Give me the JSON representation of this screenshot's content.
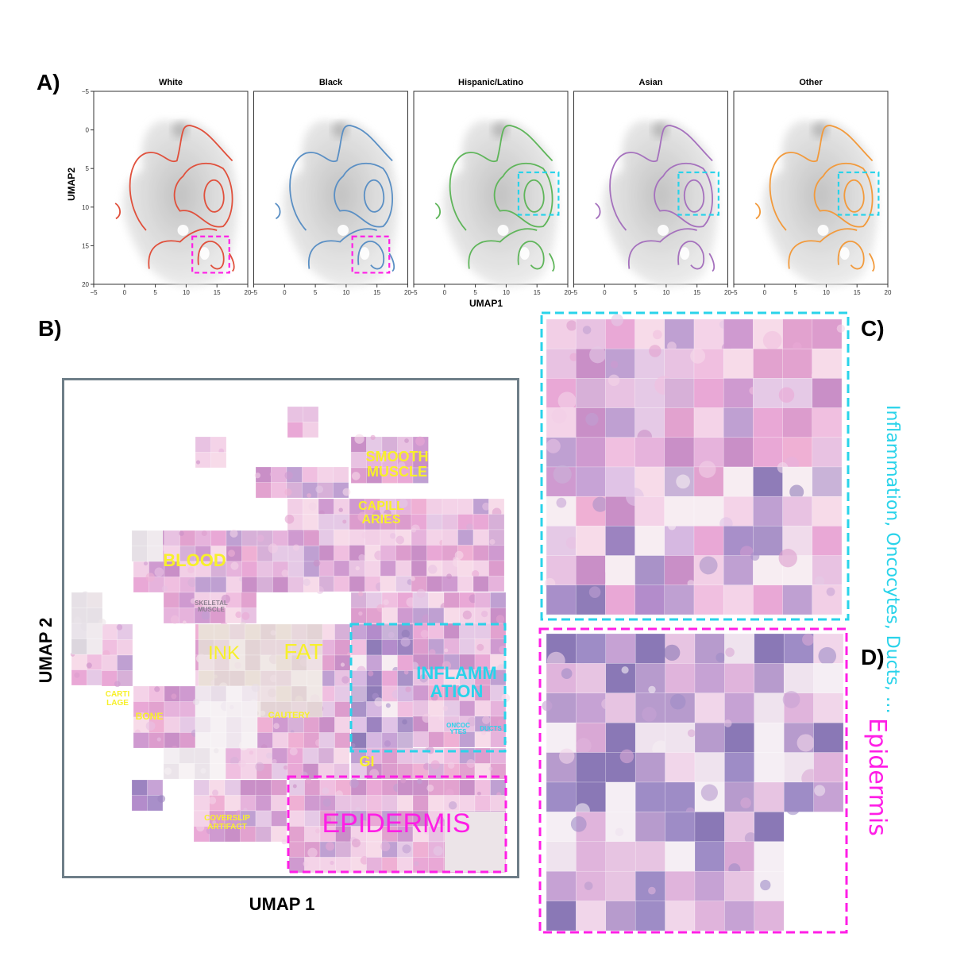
{
  "panels": {
    "a": "A)",
    "b": "B)",
    "c": "C)",
    "d": "D)"
  },
  "panel_a": {
    "ylabel": "UMAP2",
    "xlabel": "UMAP1",
    "chart_data": {
      "type": "contour",
      "xlim": [
        -5,
        20
      ],
      "ylim": [
        -5,
        20
      ],
      "y_inverted": true,
      "x_ticks": [
        -5,
        0,
        5,
        10,
        15,
        20
      ],
      "y_ticks": [
        -5,
        0,
        5,
        10,
        15,
        20
      ],
      "subplots": [
        {
          "title": "White",
          "color": "#e0503c",
          "highlight": "magenta"
        },
        {
          "title": "Black",
          "color": "#5a8fc4",
          "highlight": "magenta"
        },
        {
          "title": "Hispanic/Latino",
          "color": "#5fb55a",
          "highlight": "cyan"
        },
        {
          "title": "Asian",
          "color": "#a571bd",
          "highlight": "cyan"
        },
        {
          "title": "Other",
          "color": "#f29a3c",
          "highlight": "cyan"
        }
      ]
    }
  },
  "panel_b": {
    "xlabel": "UMAP 1",
    "ylabel": "UMAP 2",
    "labels": {
      "smooth_muscle": "SMOOTH\nMUSCLE",
      "capillaries": "CAPILL\nARIES",
      "blood": "BLOOD",
      "skeletal_muscle": "SKELETAL\nMUSCLE",
      "ink": "INK",
      "fat": "FAT",
      "inflammation": "INFLAMM\nATION",
      "cartilage": "CARTI\nLAGE",
      "bone": "BONE",
      "cautery": "CAUTERY",
      "oncocytes": "ONCOC\nYTES",
      "ducts": "DUCTS",
      "gi": "GI",
      "coverslip": "COVERSLIP\nARTIFACT",
      "epidermis": "EPIDERMIS"
    }
  },
  "panel_c": {
    "label": "Inflammation, Oncocytes, Ducts, …"
  },
  "panel_d": {
    "label": "Epidermis"
  },
  "colors": {
    "cyan": "#29d3ea",
    "magenta": "#ff1ee6",
    "yellow": "#f7f02a",
    "frame": "#6e7e88"
  }
}
